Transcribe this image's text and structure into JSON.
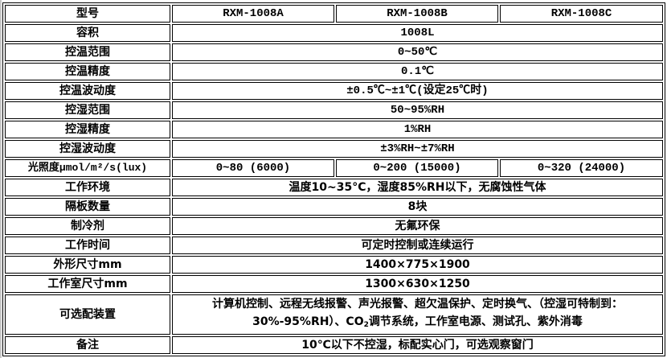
{
  "header": {
    "label": "型号",
    "models": [
      "RXM-1008A",
      "RXM-1008B",
      "RXM-1008C"
    ]
  },
  "rows": [
    {
      "label": "容积",
      "value": "1008L"
    },
    {
      "label": "控温范围",
      "value": "0~50℃"
    },
    {
      "label": "控温精度",
      "value": "0.1℃"
    },
    {
      "label": "控温波动度",
      "value": "±0.5℃~±1℃(设定25℃时)"
    },
    {
      "label": "控湿范围",
      "value": "50~95%RH"
    },
    {
      "label": "控湿精度",
      "value": "1%RH"
    },
    {
      "label": "控湿波动度",
      "value": "±3%RH~±7%RH"
    }
  ],
  "light": {
    "label": "光照度μmol/m²/s(lux)",
    "values": [
      "0~80 (6000)",
      "0~200 (15000)",
      "0~320 (24000)"
    ]
  },
  "rows2": [
    {
      "label": "工作环境",
      "value": "温度10~35°C，湿度85%RH以下，无腐蚀性气体"
    },
    {
      "label": "隔板数量",
      "value": "8块"
    },
    {
      "label": "制冷剂",
      "value": "无氟环保"
    },
    {
      "label": "工作时间",
      "value": "可定时控制或连续运行"
    },
    {
      "label": "外形尺寸mm",
      "value": "1400×775×1900"
    },
    {
      "label": "工作室尺寸mm",
      "value": "1300×630×1250"
    }
  ],
  "options": {
    "label": "可选配装置",
    "line1": "计算机控制、远程无线报警、声光报警、超欠温保护、定时换气、（控湿可特制到：",
    "line2a": "30%-95%RH）、CO",
    "line2sub": "2",
    "line2b": "调节系统，工作室电源、测试孔、紫外消毒"
  },
  "note": {
    "label": "备注",
    "value": "10℃以下不控湿，标配实心门，可选观察窗门"
  }
}
